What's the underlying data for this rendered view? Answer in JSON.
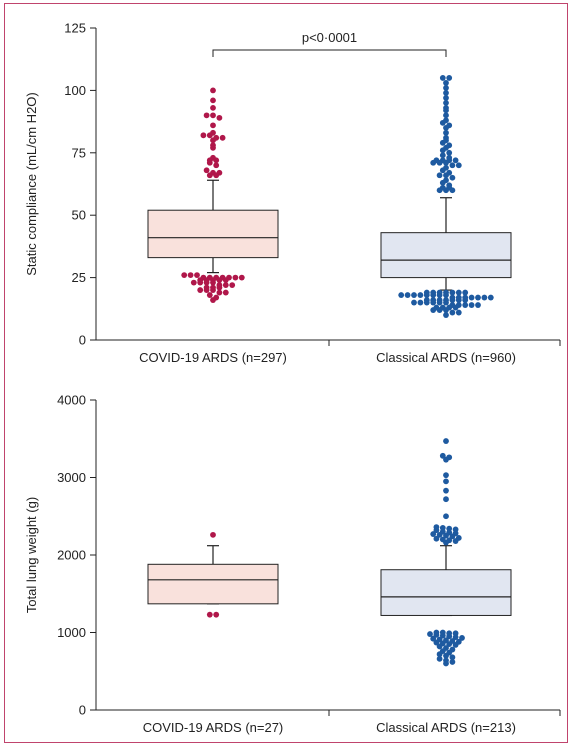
{
  "colors": {
    "covid": "#b0174a",
    "covid_box": "#f9e1dc",
    "classical": "#1e5aa0",
    "classical_box": "#e1e6f1",
    "frame": "#c0446d"
  },
  "chart_data": [
    {
      "type": "box",
      "ylabel": "Static compliance (mL/cm H2O)",
      "ylim": [
        0,
        125
      ],
      "yticks": [
        0,
        25,
        50,
        75,
        100,
        125
      ],
      "categories": [
        "COVID-19 ARDS (n=297)",
        "Classical ARDS (n=960)"
      ],
      "annotation": "p<0·0001",
      "boxes": [
        {
          "q1": 33,
          "median": 41,
          "q3": 52,
          "whisker_low": 27,
          "whisker_high": 64
        },
        {
          "q1": 25,
          "median": 32,
          "q3": 43,
          "whisker_low": 20,
          "whisker_high": 57
        }
      ],
      "outliers": [
        [
          100,
          96,
          93,
          90,
          90,
          89,
          86,
          83,
          82,
          82,
          81,
          81,
          80,
          78,
          77,
          73,
          72,
          72,
          71,
          70,
          68,
          67,
          67,
          66,
          66,
          26,
          26,
          26,
          25,
          25,
          25,
          25,
          25,
          25,
          25,
          24,
          24,
          24,
          24,
          24,
          23,
          23,
          23,
          23,
          22,
          22,
          22,
          21,
          21,
          21,
          20,
          20,
          20,
          19,
          19,
          18,
          17,
          16
        ],
        [
          105,
          105,
          103,
          101,
          99,
          97,
          95,
          93,
          92,
          90,
          88,
          87,
          86,
          85,
          83,
          81,
          80,
          79,
          78,
          77,
          76,
          75,
          74,
          73,
          72,
          72,
          72,
          72,
          71,
          71,
          71,
          70,
          70,
          69,
          68,
          67,
          66,
          66,
          65,
          64,
          63,
          62,
          61,
          61,
          60,
          60,
          60,
          19,
          19,
          19,
          19,
          19,
          19,
          19,
          18,
          18,
          18,
          18,
          18,
          18,
          18,
          18,
          17,
          17,
          17,
          17,
          17,
          17,
          17,
          16,
          16,
          16,
          16,
          16,
          16,
          16,
          15,
          15,
          15,
          15,
          15,
          15,
          14,
          14,
          14,
          14,
          14,
          13,
          13,
          13,
          13,
          12,
          12,
          12,
          11,
          11,
          10
        ]
      ]
    },
    {
      "type": "box",
      "ylabel": "Total lung weight (g)",
      "ylim": [
        0,
        4000
      ],
      "yticks": [
        0,
        1000,
        2000,
        3000,
        4000
      ],
      "categories": [
        "COVID-19 ARDS (n=27)",
        "Classical ARDS (n=213)"
      ],
      "annotation": "",
      "boxes": [
        {
          "q1": 1370,
          "median": 1680,
          "q3": 1880,
          "whisker_low": 1370,
          "whisker_high": 2120
        },
        {
          "q1": 1220,
          "median": 1460,
          "q3": 1810,
          "whisker_low": 1220,
          "whisker_high": 2120
        }
      ],
      "outliers": [
        [
          2260,
          1230,
          1230
        ],
        [
          3470,
          3280,
          3260,
          3230,
          3030,
          2950,
          2830,
          2720,
          2500,
          2360,
          2350,
          2340,
          2330,
          2320,
          2300,
          2290,
          2280,
          2270,
          2260,
          2250,
          2240,
          2220,
          2210,
          2200,
          2190,
          2180,
          2160,
          1000,
          1000,
          990,
          990,
          980,
          970,
          960,
          950,
          940,
          930,
          920,
          910,
          900,
          890,
          880,
          870,
          860,
          850,
          840,
          820,
          800,
          780,
          760,
          740,
          720,
          700,
          680,
          660,
          640,
          620,
          600
        ]
      ]
    }
  ]
}
